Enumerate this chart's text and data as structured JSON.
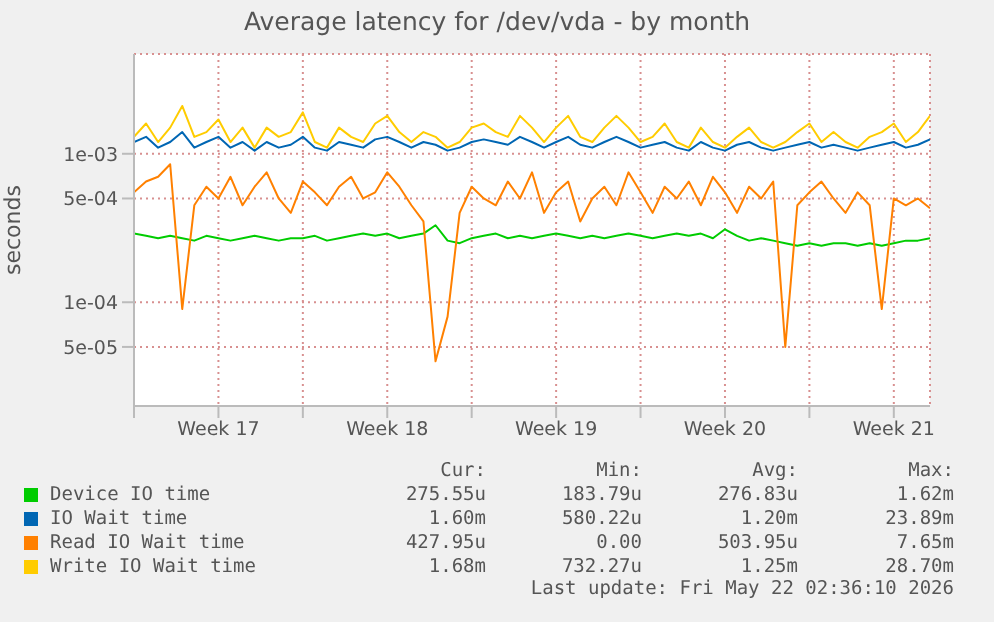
{
  "chart_data": {
    "type": "line",
    "title": "Average latency for /dev/vda - by month",
    "ylabel": "seconds",
    "log": "y",
    "grid": true,
    "legend": "bottom",
    "marker": "none",
    "xlim": [
      "2026-04-20T00:00",
      "2026-05-23T00:00"
    ],
    "xticks": [
      {
        "value": "2026-04-20T00:00",
        "label": null
      },
      {
        "value": "2026-04-23T12:00",
        "label": "Week 17"
      },
      {
        "value": "2026-04-27T00:00",
        "label": null
      },
      {
        "value": "2026-04-30T12:00",
        "label": "Week 18"
      },
      {
        "value": "2026-05-04T00:00",
        "label": null
      },
      {
        "value": "2026-05-07T12:00",
        "label": "Week 19"
      },
      {
        "value": "2026-05-11T00:00",
        "label": null
      },
      {
        "value": "2026-05-14T12:00",
        "label": "Week 20"
      },
      {
        "value": "2026-05-18T00:00",
        "label": null
      },
      {
        "value": "2026-05-21T12:00",
        "label": "Week 21"
      }
    ],
    "ylim": [
      2e-05,
      0.0047
    ],
    "yticks": [
      {
        "value": 5e-05,
        "label": "5e-05"
      },
      {
        "value": 0.0001,
        "label": "1e-04"
      },
      {
        "value": 0.0005,
        "label": "5e-04"
      },
      {
        "value": 0.001,
        "label": "1e-03"
      }
    ],
    "x": [
      "2026-04-20T00:00",
      "2026-04-20T12:00",
      "2026-04-21T00:00",
      "2026-04-21T12:00",
      "2026-04-22T00:00",
      "2026-04-22T12:00",
      "2026-04-23T00:00",
      "2026-04-23T12:00",
      "2026-04-24T00:00",
      "2026-04-24T12:00",
      "2026-04-25T00:00",
      "2026-04-25T12:00",
      "2026-04-26T00:00",
      "2026-04-26T12:00",
      "2026-04-27T00:00",
      "2026-04-27T12:00",
      "2026-04-28T00:00",
      "2026-04-28T12:00",
      "2026-04-29T00:00",
      "2026-04-29T12:00",
      "2026-04-30T00:00",
      "2026-04-30T12:00",
      "2026-05-01T00:00",
      "2026-05-01T12:00",
      "2026-05-02T00:00",
      "2026-05-02T12:00",
      "2026-05-03T00:00",
      "2026-05-03T12:00",
      "2026-05-04T00:00",
      "2026-05-04T12:00",
      "2026-05-05T00:00",
      "2026-05-05T12:00",
      "2026-05-06T00:00",
      "2026-05-06T12:00",
      "2026-05-07T00:00",
      "2026-05-07T12:00",
      "2026-05-08T00:00",
      "2026-05-08T12:00",
      "2026-05-09T00:00",
      "2026-05-09T12:00",
      "2026-05-10T00:00",
      "2026-05-10T12:00",
      "2026-05-11T00:00",
      "2026-05-11T12:00",
      "2026-05-12T00:00",
      "2026-05-12T12:00",
      "2026-05-13T00:00",
      "2026-05-13T12:00",
      "2026-05-14T00:00",
      "2026-05-14T12:00",
      "2026-05-15T00:00",
      "2026-05-15T12:00",
      "2026-05-16T00:00",
      "2026-05-16T12:00",
      "2026-05-17T00:00",
      "2026-05-17T12:00",
      "2026-05-18T00:00",
      "2026-05-18T12:00",
      "2026-05-19T00:00",
      "2026-05-19T12:00",
      "2026-05-20T00:00",
      "2026-05-20T12:00",
      "2026-05-21T00:00",
      "2026-05-21T12:00",
      "2026-05-22T00:00",
      "2026-05-22T12:00",
      "2026-05-23T00:00"
    ],
    "series": [
      {
        "name": "Device IO time",
        "color": "#00cc00",
        "values": [
          0.00029,
          0.00028,
          0.00027,
          0.00028,
          0.00027,
          0.00026,
          0.00028,
          0.00027,
          0.00026,
          0.00027,
          0.00028,
          0.00027,
          0.00026,
          0.00027,
          0.00027,
          0.00028,
          0.00026,
          0.00027,
          0.00028,
          0.00029,
          0.00028,
          0.00029,
          0.00027,
          0.00028,
          0.00029,
          0.00033,
          0.00026,
          0.00025,
          0.00027,
          0.00028,
          0.00029,
          0.00027,
          0.00028,
          0.00027,
          0.00028,
          0.00029,
          0.00028,
          0.00027,
          0.00028,
          0.00027,
          0.00028,
          0.00029,
          0.00028,
          0.00027,
          0.00028,
          0.00029,
          0.00028,
          0.00029,
          0.00027,
          0.00031,
          0.00028,
          0.00026,
          0.00027,
          0.00026,
          0.00025,
          0.00024,
          0.00025,
          0.00024,
          0.00025,
          0.00025,
          0.00024,
          0.00025,
          0.00024,
          0.00025,
          0.00026,
          0.00026,
          0.00027
        ]
      },
      {
        "name": "IO Wait time",
        "color": "#0066b3",
        "values": [
          0.0012,
          0.0013,
          0.0011,
          0.0012,
          0.0014,
          0.0011,
          0.0012,
          0.0013,
          0.0011,
          0.0012,
          0.00105,
          0.0012,
          0.0011,
          0.00115,
          0.0013,
          0.0011,
          0.00105,
          0.0012,
          0.00115,
          0.0011,
          0.00125,
          0.0013,
          0.0012,
          0.0011,
          0.0012,
          0.00115,
          0.00105,
          0.0011,
          0.0012,
          0.00125,
          0.0012,
          0.00115,
          0.0013,
          0.0012,
          0.0011,
          0.0012,
          0.0013,
          0.00115,
          0.0011,
          0.0012,
          0.0013,
          0.0012,
          0.0011,
          0.00115,
          0.0012,
          0.0011,
          0.00105,
          0.0012,
          0.0011,
          0.00105,
          0.00115,
          0.0012,
          0.0011,
          0.00105,
          0.0011,
          0.00115,
          0.0012,
          0.0011,
          0.00115,
          0.0011,
          0.00105,
          0.0011,
          0.00115,
          0.0012,
          0.0011,
          0.00115,
          0.00125
        ]
      },
      {
        "name": "Read IO Wait time",
        "color": "#ff8000",
        "values": [
          0.00055,
          0.00065,
          0.0007,
          0.00085,
          9e-05,
          0.00045,
          0.0006,
          0.0005,
          0.0007,
          0.00045,
          0.0006,
          0.00075,
          0.0005,
          0.0004,
          0.00065,
          0.00055,
          0.00045,
          0.0006,
          0.0007,
          0.0005,
          0.00055,
          0.00075,
          0.0006,
          0.00045,
          0.00035,
          4e-05,
          8e-05,
          0.0004,
          0.0006,
          0.0005,
          0.00045,
          0.00065,
          0.0005,
          0.00075,
          0.0004,
          0.00055,
          0.00065,
          0.00035,
          0.0005,
          0.0006,
          0.00045,
          0.00075,
          0.00055,
          0.0004,
          0.0006,
          0.0005,
          0.00065,
          0.00045,
          0.0007,
          0.00055,
          0.0004,
          0.0006,
          0.0005,
          0.00065,
          5e-05,
          0.00045,
          0.00055,
          0.00065,
          0.0005,
          0.0004,
          0.00055,
          0.00045,
          9e-05,
          0.0005,
          0.00045,
          0.0005,
          0.00043
        ]
      },
      {
        "name": "Write IO Wait time",
        "color": "#ffcc00",
        "values": [
          0.0013,
          0.0016,
          0.0012,
          0.0015,
          0.0021,
          0.0013,
          0.0014,
          0.0017,
          0.0012,
          0.0015,
          0.0011,
          0.0015,
          0.0013,
          0.0014,
          0.0019,
          0.0012,
          0.0011,
          0.0015,
          0.0013,
          0.0012,
          0.0016,
          0.0018,
          0.0014,
          0.0012,
          0.0014,
          0.0013,
          0.0011,
          0.0012,
          0.0015,
          0.0016,
          0.0014,
          0.0013,
          0.0018,
          0.0015,
          0.0012,
          0.0015,
          0.0018,
          0.0013,
          0.0012,
          0.0015,
          0.0018,
          0.0015,
          0.0012,
          0.0013,
          0.0016,
          0.0012,
          0.0011,
          0.0015,
          0.0012,
          0.0011,
          0.0013,
          0.0015,
          0.0012,
          0.0011,
          0.0012,
          0.0014,
          0.0016,
          0.0012,
          0.0014,
          0.0012,
          0.0011,
          0.0013,
          0.0014,
          0.0016,
          0.0012,
          0.0014,
          0.0018
        ]
      }
    ],
    "annotations": [
      "Cur:",
      "Min:",
      "Avg:",
      "Max:",
      "275.55u",
      "183.79u",
      "276.83u",
      "1.62m",
      "1.60m",
      "580.22u",
      "1.20m",
      "23.89m",
      "427.95u",
      "0.00",
      "503.95u",
      "7.65m",
      "1.68m",
      "732.27u",
      "1.25m",
      "28.70m",
      "Last update: Fri May 22 02:36:10 2026"
    ]
  }
}
